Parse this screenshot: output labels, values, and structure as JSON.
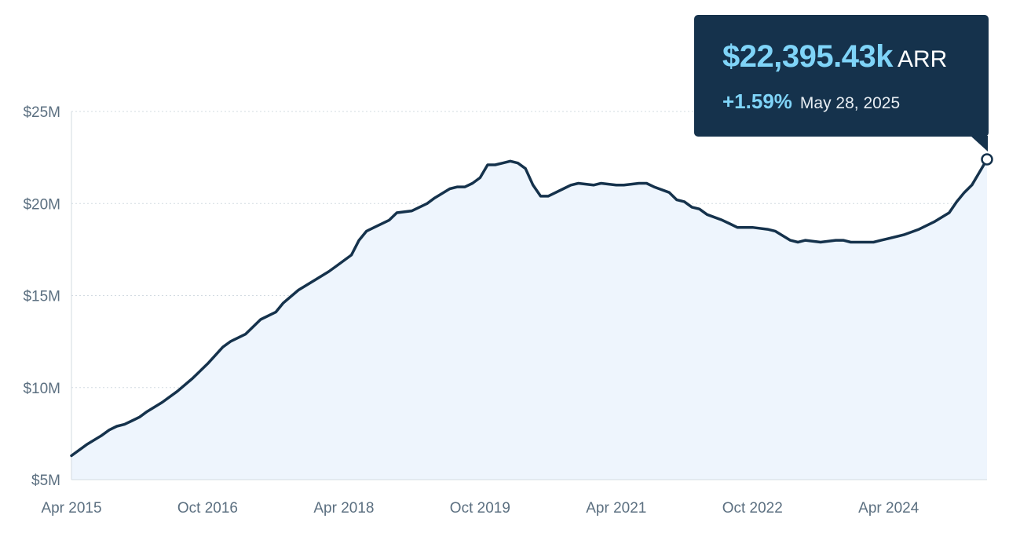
{
  "tooltip": {
    "value": "$22,395.43k",
    "unit": "ARR",
    "change": "+1.59%",
    "date": "May 28, 2025"
  },
  "colors": {
    "line": "#15324c",
    "area": "#eef5fd",
    "grid": "#d3dbe2",
    "tick_text": "#5b6f80",
    "accent": "#7fd4f8"
  },
  "chart_data": {
    "type": "area",
    "title": "",
    "xlabel": "",
    "ylabel": "",
    "ylim": [
      5,
      25
    ],
    "y_unit": "$M",
    "yticks": [
      {
        "value": 25,
        "label": "$25M"
      },
      {
        "value": 20,
        "label": "$20M"
      },
      {
        "value": 15,
        "label": "$15M"
      },
      {
        "value": 10,
        "label": "$10M"
      },
      {
        "value": 5,
        "label": "$5M"
      }
    ],
    "xlim": [
      "2015-04",
      "2025-05"
    ],
    "xticks": [
      {
        "date": "2015-04",
        "label": "Apr 2015"
      },
      {
        "date": "2016-10",
        "label": "Oct 2016"
      },
      {
        "date": "2018-04",
        "label": "Apr 2018"
      },
      {
        "date": "2019-10",
        "label": "Oct 2019"
      },
      {
        "date": "2021-04",
        "label": "Apr 2021"
      },
      {
        "date": "2022-10",
        "label": "Oct 2022"
      },
      {
        "date": "2024-04",
        "label": "Apr 2024"
      }
    ],
    "grid": true,
    "series": [
      {
        "points": [
          [
            "2015-04",
            6.3
          ],
          [
            "2015-06",
            6.9
          ],
          [
            "2015-08",
            7.4
          ],
          [
            "2015-09",
            7.7
          ],
          [
            "2015-10",
            7.9
          ],
          [
            "2015-11",
            8.0
          ],
          [
            "2015-12",
            8.2
          ],
          [
            "2016-01",
            8.4
          ],
          [
            "2016-02",
            8.7
          ],
          [
            "2016-04",
            9.2
          ],
          [
            "2016-06",
            9.8
          ],
          [
            "2016-08",
            10.5
          ],
          [
            "2016-10",
            11.3
          ],
          [
            "2016-12",
            12.2
          ],
          [
            "2017-01",
            12.5
          ],
          [
            "2017-03",
            12.9
          ],
          [
            "2017-05",
            13.7
          ],
          [
            "2017-07",
            14.1
          ],
          [
            "2017-08",
            14.6
          ],
          [
            "2017-10",
            15.3
          ],
          [
            "2017-12",
            15.8
          ],
          [
            "2018-02",
            16.3
          ],
          [
            "2018-03",
            16.6
          ],
          [
            "2018-05",
            17.2
          ],
          [
            "2018-06",
            18.0
          ],
          [
            "2018-07",
            18.5
          ],
          [
            "2018-08",
            18.7
          ],
          [
            "2018-10",
            19.1
          ],
          [
            "2018-11",
            19.5
          ],
          [
            "2019-01",
            19.6
          ],
          [
            "2019-03",
            20.0
          ],
          [
            "2019-04",
            20.3
          ],
          [
            "2019-06",
            20.8
          ],
          [
            "2019-07",
            20.9
          ],
          [
            "2019-08",
            20.9
          ],
          [
            "2019-09",
            21.1
          ],
          [
            "2019-10",
            21.4
          ],
          [
            "2019-11",
            22.1
          ],
          [
            "2019-12",
            22.1
          ],
          [
            "2020-01",
            22.2
          ],
          [
            "2020-02",
            22.3
          ],
          [
            "2020-03",
            22.2
          ],
          [
            "2020-04",
            21.9
          ],
          [
            "2020-05",
            21.0
          ],
          [
            "2020-06",
            20.4
          ],
          [
            "2020-07",
            20.4
          ],
          [
            "2020-09",
            20.8
          ],
          [
            "2020-10",
            21.0
          ],
          [
            "2020-11",
            21.1
          ],
          [
            "2021-01",
            21.0
          ],
          [
            "2021-02",
            21.1
          ],
          [
            "2021-04",
            21.0
          ],
          [
            "2021-05",
            21.0
          ],
          [
            "2021-07",
            21.1
          ],
          [
            "2021-08",
            21.1
          ],
          [
            "2021-09",
            20.9
          ],
          [
            "2021-11",
            20.6
          ],
          [
            "2021-12",
            20.2
          ],
          [
            "2022-01",
            20.1
          ],
          [
            "2022-02",
            19.8
          ],
          [
            "2022-03",
            19.7
          ],
          [
            "2022-04",
            19.4
          ],
          [
            "2022-06",
            19.1
          ],
          [
            "2022-07",
            18.9
          ],
          [
            "2022-08",
            18.7
          ],
          [
            "2022-09",
            18.7
          ],
          [
            "2022-10",
            18.7
          ],
          [
            "2022-12",
            18.6
          ],
          [
            "2023-01",
            18.5
          ],
          [
            "2023-03",
            18.0
          ],
          [
            "2023-04",
            17.9
          ],
          [
            "2023-05",
            18.0
          ],
          [
            "2023-07",
            17.9
          ],
          [
            "2023-09",
            18.0
          ],
          [
            "2023-10",
            18.0
          ],
          [
            "2023-11",
            17.9
          ],
          [
            "2024-01",
            17.9
          ],
          [
            "2024-02",
            17.9
          ],
          [
            "2024-03",
            18.0
          ],
          [
            "2024-04",
            18.1
          ],
          [
            "2024-06",
            18.3
          ],
          [
            "2024-08",
            18.6
          ],
          [
            "2024-10",
            19.0
          ],
          [
            "2024-12",
            19.5
          ],
          [
            "2025-01",
            20.1
          ],
          [
            "2025-02",
            20.6
          ],
          [
            "2025-03",
            21.0
          ],
          [
            "2025-04",
            21.7
          ],
          [
            "2025-05",
            22.4
          ]
        ]
      }
    ]
  }
}
